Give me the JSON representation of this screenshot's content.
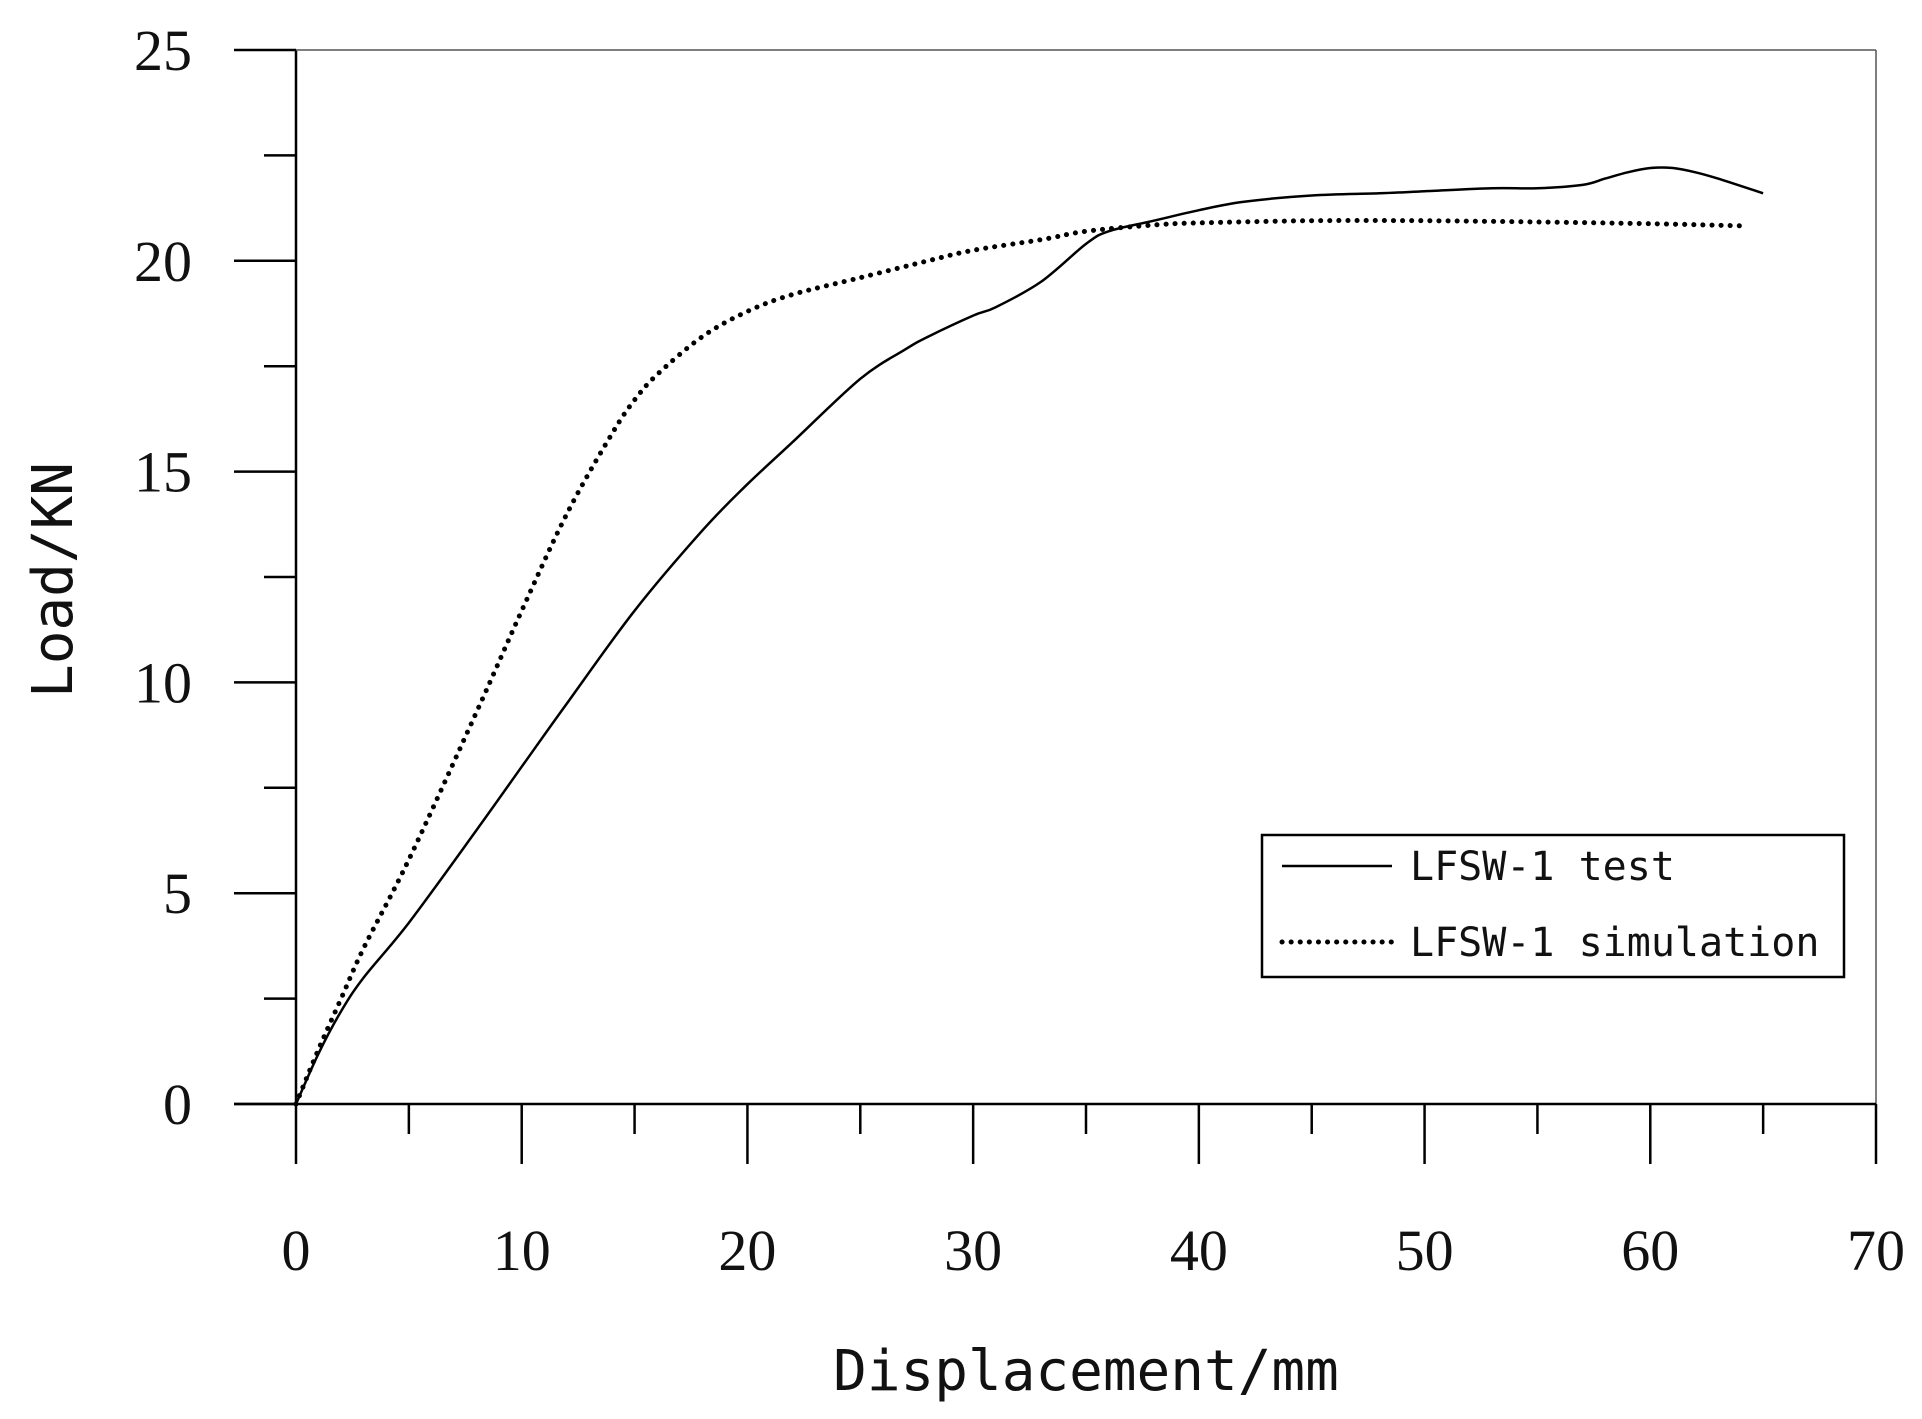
{
  "chart_data": {
    "type": "line",
    "title": "",
    "xlabel": "Displacement/mm",
    "ylabel": "Load/KN",
    "xlim": [
      0,
      70
    ],
    "ylim": [
      0,
      25
    ],
    "xticks": [
      0,
      10,
      20,
      30,
      40,
      50,
      60,
      70
    ],
    "xtick_labels": [
      "0",
      "10",
      "20",
      "30",
      "40",
      "50",
      "60",
      "70"
    ],
    "yticks": [
      0,
      5,
      10,
      15,
      20,
      25
    ],
    "ytick_labels": [
      "0",
      "5",
      "10",
      "15",
      "20",
      "25"
    ],
    "grid": false,
    "legend_position": "lower-right",
    "series": [
      {
        "name": "LFSW-1 test",
        "style": "solid",
        "color": "#000000",
        "x": [
          0,
          1,
          2,
          3,
          5,
          8,
          10,
          12,
          15,
          18,
          20,
          22,
          25,
          27,
          28,
          30,
          31,
          33,
          35,
          36,
          38,
          40,
          42,
          45,
          48,
          50,
          53,
          55,
          57,
          58,
          59,
          60,
          61,
          62,
          63,
          65
        ],
        "y": [
          0,
          1.2,
          2.2,
          3.0,
          4.3,
          6.5,
          8.0,
          9.5,
          11.7,
          13.6,
          14.7,
          15.7,
          17.2,
          17.9,
          18.2,
          18.7,
          18.9,
          19.5,
          20.4,
          20.7,
          20.95,
          21.2,
          21.4,
          21.55,
          21.6,
          21.65,
          21.72,
          21.72,
          21.8,
          21.95,
          22.1,
          22.2,
          22.2,
          22.1,
          21.95,
          21.6
        ]
      },
      {
        "name": "LFSW-1 simulation",
        "style": "dotted",
        "color": "#000000",
        "x": [
          0,
          1,
          2,
          3,
          5,
          8,
          10,
          12,
          14,
          15,
          16,
          18,
          20,
          22,
          25,
          28,
          30,
          33,
          35,
          38,
          40,
          45,
          50,
          55,
          60,
          64
        ],
        "y": [
          0,
          1.3,
          2.5,
          3.7,
          5.8,
          9.3,
          11.7,
          14.0,
          15.9,
          16.7,
          17.3,
          18.2,
          18.8,
          19.2,
          19.6,
          20.0,
          20.25,
          20.5,
          20.7,
          20.85,
          20.9,
          20.95,
          20.95,
          20.92,
          20.88,
          20.83
        ]
      }
    ]
  }
}
